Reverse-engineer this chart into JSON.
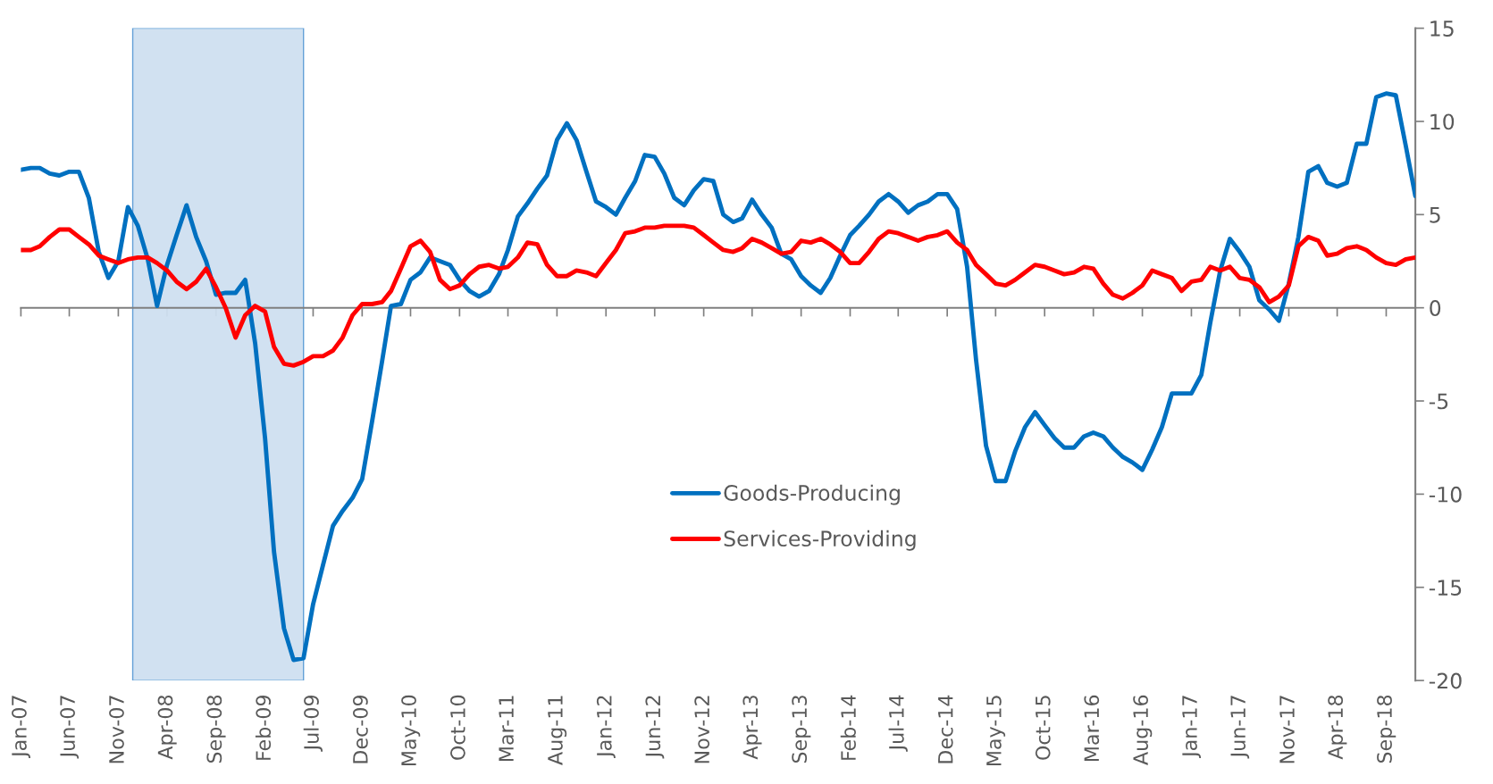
{
  "chart_data": {
    "type": "line",
    "x": [
      "2007-01",
      "2007-02",
      "2007-03",
      "2007-04",
      "2007-05",
      "2007-06",
      "2007-07",
      "2007-08",
      "2007-09",
      "2007-10",
      "2007-11",
      "2007-12",
      "2008-01",
      "2008-02",
      "2008-03",
      "2008-04",
      "2008-05",
      "2008-06",
      "2008-07",
      "2008-08",
      "2008-09",
      "2008-10",
      "2008-11",
      "2008-12",
      "2009-01",
      "2009-02",
      "2009-03",
      "2009-04",
      "2009-05",
      "2009-06",
      "2009-07",
      "2009-08",
      "2009-09",
      "2009-10",
      "2009-11",
      "2009-12",
      "2010-01",
      "2010-02",
      "2010-03",
      "2010-04",
      "2010-05",
      "2010-06",
      "2010-07",
      "2010-08",
      "2010-09",
      "2010-10",
      "2010-11",
      "2010-12",
      "2011-01",
      "2011-02",
      "2011-03",
      "2011-04",
      "2011-05",
      "2011-06",
      "2011-07",
      "2011-08",
      "2011-09",
      "2011-10",
      "2011-11",
      "2011-12",
      "2012-01",
      "2012-02",
      "2012-03",
      "2012-04",
      "2012-05",
      "2012-06",
      "2012-07",
      "2012-08",
      "2012-09",
      "2012-10",
      "2012-11",
      "2012-12",
      "2013-01",
      "2013-02",
      "2013-03",
      "2013-04",
      "2013-05",
      "2013-06",
      "2013-07",
      "2013-08",
      "2013-09",
      "2013-10",
      "2013-11",
      "2013-12",
      "2014-01",
      "2014-02",
      "2014-03",
      "2014-04",
      "2014-05",
      "2014-06",
      "2014-07",
      "2014-08",
      "2014-09",
      "2014-10",
      "2014-11",
      "2014-12",
      "2015-01",
      "2015-02",
      "2015-03",
      "2015-04",
      "2015-05",
      "2015-06",
      "2015-07",
      "2015-08",
      "2015-09",
      "2015-10",
      "2015-11",
      "2015-12",
      "2016-01",
      "2016-02",
      "2016-03",
      "2016-04",
      "2016-05",
      "2016-06",
      "2016-07",
      "2016-08",
      "2016-09",
      "2016-10",
      "2016-11",
      "2016-12",
      "2017-01",
      "2017-02",
      "2017-03",
      "2017-04",
      "2017-05",
      "2017-06",
      "2017-07",
      "2017-08",
      "2017-09",
      "2017-10",
      "2017-11",
      "2017-12",
      "2018-01",
      "2018-02",
      "2018-03",
      "2018-04",
      "2018-05",
      "2018-06",
      "2018-07",
      "2018-08",
      "2018-09",
      "2018-10",
      "2018-11",
      "2018-12"
    ],
    "series": [
      {
        "name": "Goods-Producing",
        "color": "#0070c0",
        "values": [
          7.4,
          7.5,
          7.5,
          7.2,
          7.1,
          7.3,
          7.3,
          5.9,
          3.0,
          1.6,
          2.5,
          5.4,
          4.4,
          2.6,
          0.1,
          2.3,
          3.9,
          5.5,
          3.8,
          2.5,
          0.7,
          0.8,
          0.8,
          1.5,
          -1.9,
          -7.0,
          -13.1,
          -17.2,
          -18.9,
          -18.8,
          -15.9,
          -13.8,
          -11.7,
          -10.9,
          -10.2,
          -9.2,
          -6.1,
          -2.9,
          0.1,
          0.2,
          1.5,
          1.9,
          2.7,
          2.5,
          2.3,
          1.5,
          0.9,
          0.6,
          0.9,
          1.8,
          3.1,
          4.9,
          5.6,
          6.4,
          7.1,
          9.0,
          9.9,
          9.0,
          7.3,
          5.7,
          5.4,
          5.0,
          5.9,
          6.8,
          8.2,
          8.1,
          7.2,
          5.9,
          5.5,
          6.3,
          6.9,
          6.8,
          5.0,
          4.6,
          4.8,
          5.8,
          5.0,
          4.3,
          2.9,
          2.6,
          1.7,
          1.2,
          0.8,
          1.6,
          2.8,
          3.9,
          4.4,
          5.0,
          5.7,
          6.1,
          5.7,
          5.1,
          5.5,
          5.7,
          6.1,
          6.1,
          5.3,
          2.2,
          -2.8,
          -7.4,
          -9.3,
          -9.3,
          -7.7,
          -6.4,
          -5.6,
          -6.3,
          -7.0,
          -7.5,
          -7.5,
          -6.9,
          -6.7,
          -6.9,
          -7.5,
          -8.0,
          -8.3,
          -8.7,
          -7.6,
          -6.4,
          -4.6,
          -4.6,
          -4.6,
          -3.6,
          -0.8,
          2.0,
          3.7,
          3.0,
          2.2,
          0.4,
          -0.1,
          -0.7,
          1.3,
          3.8,
          7.3,
          7.6,
          6.7,
          6.5,
          6.7,
          8.8,
          8.8,
          11.3,
          11.5,
          11.4,
          8.7,
          6.0
        ]
      },
      {
        "name": "Services-Providing",
        "color": "#ff0000",
        "values": [
          3.1,
          3.1,
          3.3,
          3.8,
          4.2,
          4.2,
          3.8,
          3.4,
          2.8,
          2.6,
          2.4,
          2.6,
          2.7,
          2.7,
          2.4,
          2.0,
          1.4,
          1.0,
          1.4,
          2.1,
          1.1,
          0.0,
          -1.6,
          -0.4,
          0.1,
          -0.2,
          -2.1,
          -3.0,
          -3.1,
          -2.9,
          -2.6,
          -2.6,
          -2.3,
          -1.6,
          -0.4,
          0.2,
          0.2,
          0.3,
          0.9,
          2.1,
          3.3,
          3.6,
          3.0,
          1.5,
          1.0,
          1.2,
          1.8,
          2.2,
          2.3,
          2.1,
          2.2,
          2.7,
          3.5,
          3.4,
          2.3,
          1.7,
          1.7,
          2.0,
          1.9,
          1.7,
          2.4,
          3.1,
          4.0,
          4.1,
          4.3,
          4.3,
          4.4,
          4.4,
          4.4,
          4.3,
          3.9,
          3.5,
          3.1,
          3.0,
          3.2,
          3.7,
          3.5,
          3.2,
          2.9,
          3.0,
          3.6,
          3.5,
          3.7,
          3.4,
          3.0,
          2.4,
          2.4,
          3.0,
          3.7,
          4.1,
          4.0,
          3.8,
          3.6,
          3.8,
          3.9,
          4.1,
          3.5,
          3.1,
          2.3,
          1.8,
          1.3,
          1.2,
          1.5,
          1.9,
          2.3,
          2.2,
          2.0,
          1.8,
          1.9,
          2.2,
          2.1,
          1.3,
          0.7,
          0.5,
          0.8,
          1.2,
          2.0,
          1.8,
          1.6,
          0.9,
          1.4,
          1.5,
          2.2,
          2.0,
          2.2,
          1.6,
          1.5,
          1.1,
          0.3,
          0.6,
          1.2,
          3.3,
          3.8,
          3.6,
          2.8,
          2.9,
          3.2,
          3.3,
          3.1,
          2.7,
          2.4,
          2.3,
          2.6,
          2.7
        ]
      }
    ],
    "xlim": [
      "2007-01",
      "2018-12"
    ],
    "xticks": [
      {
        "value": "2007-01",
        "label": "Jan-07"
      },
      {
        "value": "2007-06",
        "label": "Jun-07"
      },
      {
        "value": "2007-11",
        "label": "Nov-07"
      },
      {
        "value": "2008-04",
        "label": "Apr-08"
      },
      {
        "value": "2008-09",
        "label": "Sep-08"
      },
      {
        "value": "2009-02",
        "label": "Feb-09"
      },
      {
        "value": "2009-07",
        "label": "Jul-09"
      },
      {
        "value": "2009-12",
        "label": "Dec-09"
      },
      {
        "value": "2010-05",
        "label": "May-10"
      },
      {
        "value": "2010-10",
        "label": "Oct-10"
      },
      {
        "value": "2011-03",
        "label": "Mar-11"
      },
      {
        "value": "2011-08",
        "label": "Aug-11"
      },
      {
        "value": "2012-01",
        "label": "Jan-12"
      },
      {
        "value": "2012-06",
        "label": "Jun-12"
      },
      {
        "value": "2012-11",
        "label": "Nov-12"
      },
      {
        "value": "2013-04",
        "label": "Apr-13"
      },
      {
        "value": "2013-09",
        "label": "Sep-13"
      },
      {
        "value": "2014-02",
        "label": "Feb-14"
      },
      {
        "value": "2014-07",
        "label": "Jul-14"
      },
      {
        "value": "2014-12",
        "label": "Dec-14"
      },
      {
        "value": "2015-05",
        "label": "May-15"
      },
      {
        "value": "2015-10",
        "label": "Oct-15"
      },
      {
        "value": "2016-03",
        "label": "Mar-16"
      },
      {
        "value": "2016-08",
        "label": "Aug-16"
      },
      {
        "value": "2017-01",
        "label": "Jan-17"
      },
      {
        "value": "2017-06",
        "label": "Jun-17"
      },
      {
        "value": "2017-11",
        "label": "Nov-17"
      },
      {
        "value": "2018-04",
        "label": "Apr-18"
      },
      {
        "value": "2018-09",
        "label": "Sep-18"
      }
    ],
    "ylim": [
      -20,
      15
    ],
    "yticks": [
      -20,
      -15,
      -10,
      -5,
      0,
      5,
      10,
      15
    ],
    "bands": [
      {
        "axis": "x",
        "from": "2007-12-16",
        "to": "2009-06-01",
        "color": "#cfe0f1"
      }
    ],
    "legend": "bottom",
    "marker": "none",
    "line_style": "solid"
  }
}
